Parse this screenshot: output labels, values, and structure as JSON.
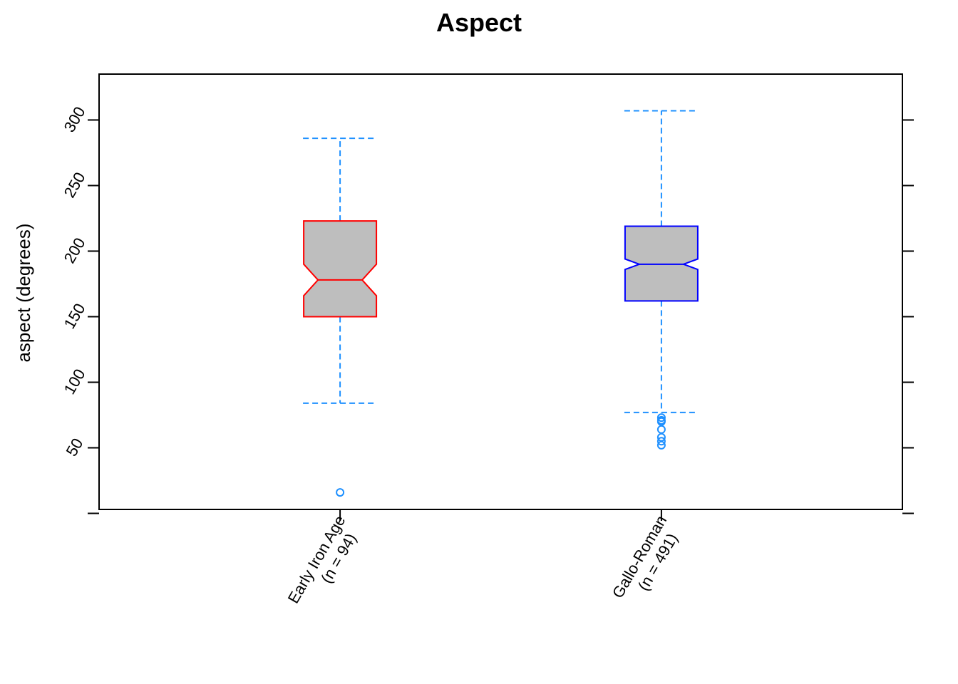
{
  "chart_data": {
    "type": "boxplot",
    "title": "Aspect",
    "xlabel": "",
    "ylabel": "aspect (degrees)",
    "ylim": [
      3,
      335
    ],
    "y_ticks": [
      50,
      100,
      150,
      200,
      250,
      300
    ],
    "y_tick_labels": [
      "50",
      "100",
      "150",
      "200",
      "250",
      "300"
    ],
    "notched": true,
    "whisker_style": "dashed",
    "whisker_color": "#1E90FF",
    "box_fill": "#BEBEBE",
    "categories": [
      {
        "label_line1": "Early Iron Age",
        "label_line2": "(n = 94)",
        "border_color": "#FF0000",
        "whisker_low": 84,
        "q1": 150,
        "notch_low": 166,
        "median": 178,
        "notch_high": 190,
        "q3": 223,
        "whisker_high": 286,
        "outliers": [
          16
        ]
      },
      {
        "label_line1": "Gallo-Roman",
        "label_line2": "(n = 491)",
        "border_color": "#0000FF",
        "whisker_low": 77,
        "q1": 162,
        "notch_low": 186,
        "median": 190,
        "notch_high": 194,
        "q3": 219,
        "whisker_high": 307,
        "outliers": [
          73,
          71,
          70,
          64,
          58,
          55,
          52
        ]
      }
    ]
  }
}
